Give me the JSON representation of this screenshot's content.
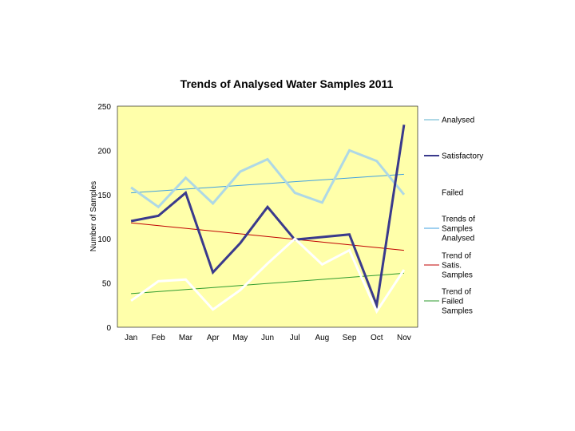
{
  "chart_data": {
    "type": "line",
    "title": "Trends of Analysed Water Samples 2011",
    "xlabel": "",
    "ylabel": "Number of Samples",
    "categories": [
      "Jan",
      "Feb",
      "Mar",
      "Apr",
      "May",
      "Jun",
      "Jul",
      "Aug",
      "Sep",
      "Oct",
      "Nov"
    ],
    "ylim": [
      0,
      250
    ],
    "yticks": [
      0,
      50,
      100,
      150,
      200,
      250
    ],
    "plot_background": "#FFFFAA",
    "series": [
      {
        "name": "Analysed",
        "color": "#AED8E6",
        "style": "thick",
        "values": [
          158,
          136,
          169,
          140,
          176,
          190,
          152,
          141,
          200,
          188,
          150
        ]
      },
      {
        "name": "Satisfactory",
        "color": "#3A3A8C",
        "style": "thick",
        "values": [
          120,
          126,
          152,
          62,
          95,
          136,
          99,
          102,
          105,
          25,
          229
        ]
      },
      {
        "name": "Failed",
        "color": "#FFFFFF",
        "style": "thick",
        "values": [
          30,
          52,
          54,
          20,
          42,
          72,
          100,
          71,
          87,
          18,
          65
        ]
      }
    ],
    "trendlines": [
      {
        "name": "Trends of Samples Analysed",
        "color": "#3FA0E0",
        "start": 152,
        "end": 173
      },
      {
        "name": "Trend of Satis. Samples",
        "color": "#C00000",
        "start": 118,
        "end": 87
      },
      {
        "name": "Trend of Failed Samples",
        "color": "#2E9B2E",
        "start": 38,
        "end": 61
      }
    ],
    "legend": {
      "position": "right",
      "entries": [
        {
          "label_lines": [
            "Analysed"
          ],
          "color": "#AED8E6",
          "thick": true
        },
        {
          "label_lines": [
            "Satisfactory"
          ],
          "color": "#3A3A8C",
          "thick": true
        },
        {
          "label_lines": [
            "Failed"
          ],
          "color": "#FFFFFF",
          "thick": true
        },
        {
          "label_lines": [
            "Trends of",
            "Samples",
            "Analysed"
          ],
          "color": "#3FA0E0",
          "thick": false
        },
        {
          "label_lines": [
            "Trend of",
            "Satis.",
            "Samples"
          ],
          "color": "#C00000",
          "thick": false
        },
        {
          "label_lines": [
            "Trend of",
            "Failed",
            "Samples"
          ],
          "color": "#2E9B2E",
          "thick": false
        }
      ]
    }
  }
}
